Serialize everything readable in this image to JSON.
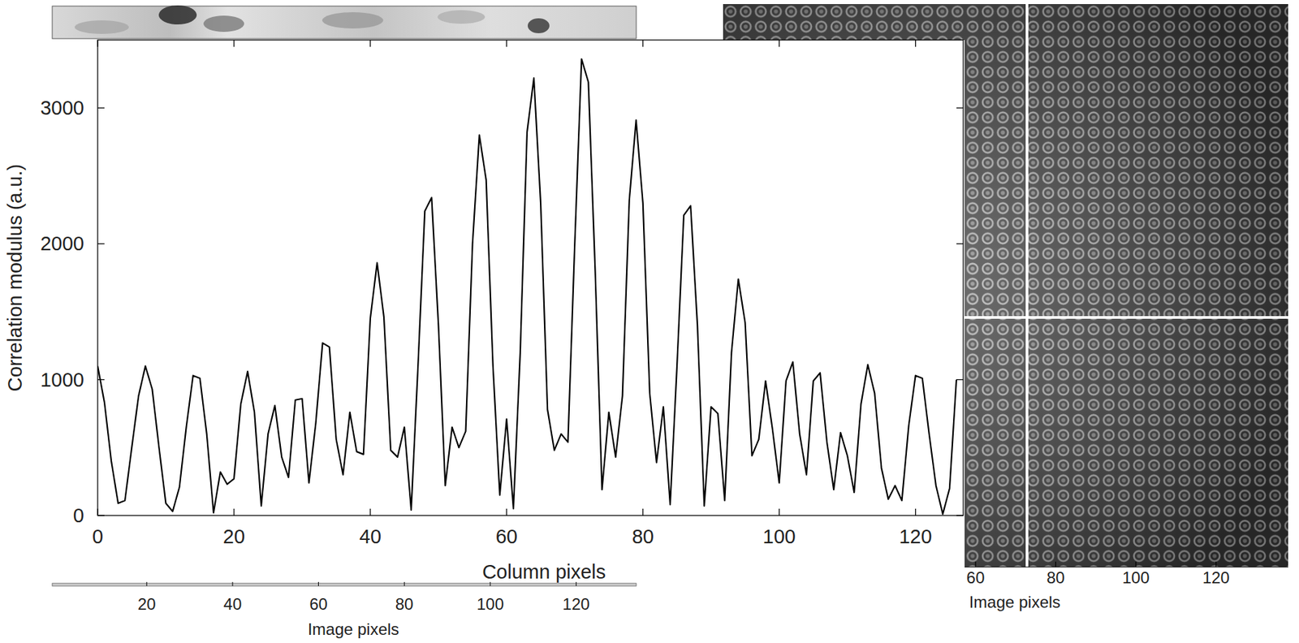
{
  "chart_data": [
    {
      "type": "line",
      "x_label": "Column pixels",
      "y_label": "Correlation modulus (a.u.)",
      "x": [
        0,
        1,
        2,
        3,
        4,
        5,
        6,
        7,
        8,
        9,
        10,
        11,
        12,
        13,
        14,
        15,
        16,
        17,
        18,
        19,
        20,
        21,
        22,
        23,
        24,
        25,
        26,
        27,
        28,
        29,
        30,
        31,
        32,
        33,
        34,
        35,
        36,
        37,
        38,
        39,
        40,
        41,
        42,
        43,
        44,
        45,
        46,
        47,
        48,
        49,
        50,
        51,
        52,
        53,
        54,
        55,
        56,
        57,
        58,
        59,
        60,
        61,
        62,
        63,
        64,
        65,
        66,
        67,
        68,
        69,
        70,
        71,
        72,
        73,
        74,
        75,
        76,
        77,
        78,
        79,
        80,
        81,
        82,
        83,
        84,
        85,
        86,
        87,
        88,
        89,
        90,
        91,
        92,
        93,
        94,
        95,
        96,
        97,
        98,
        99,
        100,
        101,
        102,
        103,
        104,
        105,
        106,
        107,
        108,
        109,
        110,
        111,
        112,
        113,
        114,
        115,
        116,
        117,
        118,
        119,
        120,
        121,
        122,
        123,
        124,
        125,
        126
      ],
      "values": [
        1100,
        830,
        400,
        90,
        110,
        500,
        880,
        1100,
        930,
        500,
        90,
        30,
        210,
        650,
        1030,
        1010,
        600,
        20,
        320,
        230,
        270,
        820,
        1060,
        760,
        70,
        600,
        810,
        430,
        280,
        850,
        860,
        240,
        680,
        1270,
        1240,
        560,
        300,
        760,
        470,
        450,
        1450,
        1860,
        1460,
        480,
        430,
        650,
        40,
        1100,
        2240,
        2340,
        1400,
        220,
        650,
        500,
        620,
        2000,
        2800,
        2470,
        1100,
        150,
        710,
        50,
        1200,
        2820,
        3220,
        2300,
        780,
        480,
        600,
        540,
        2000,
        3360,
        3190,
        1800,
        190,
        760,
        430,
        880,
        2320,
        2910,
        2300,
        900,
        390,
        800,
        80,
        1100,
        2210,
        2280,
        1400,
        70,
        800,
        750,
        110,
        1200,
        1740,
        1420,
        440,
        560,
        990,
        640,
        240,
        990,
        1130,
        600,
        300,
        990,
        1050,
        540,
        190,
        610,
        440,
        170,
        820,
        1110,
        900,
        350,
        120,
        220,
        110,
        660,
        1030,
        1010,
        600,
        220,
        10,
        200,
        1000
      ],
      "color": "#000000",
      "xlim": [
        0,
        127
      ],
      "ylim": [
        0,
        3500
      ],
      "xticks": [
        0,
        20,
        40,
        60,
        80,
        100,
        120
      ],
      "yticks": [
        0,
        1000,
        2000,
        3000
      ],
      "grid": false
    },
    {
      "type": "image",
      "x_label": "Image pixels",
      "xlim": [
        -2,
        134
      ],
      "xticks": [
        20,
        40,
        60,
        80,
        100,
        120
      ]
    },
    {
      "type": "image",
      "x_label": "Image pixels",
      "xlim": [
        -3,
        138
      ],
      "xticks": [
        60,
        80,
        100,
        120
      ]
    }
  ]
}
